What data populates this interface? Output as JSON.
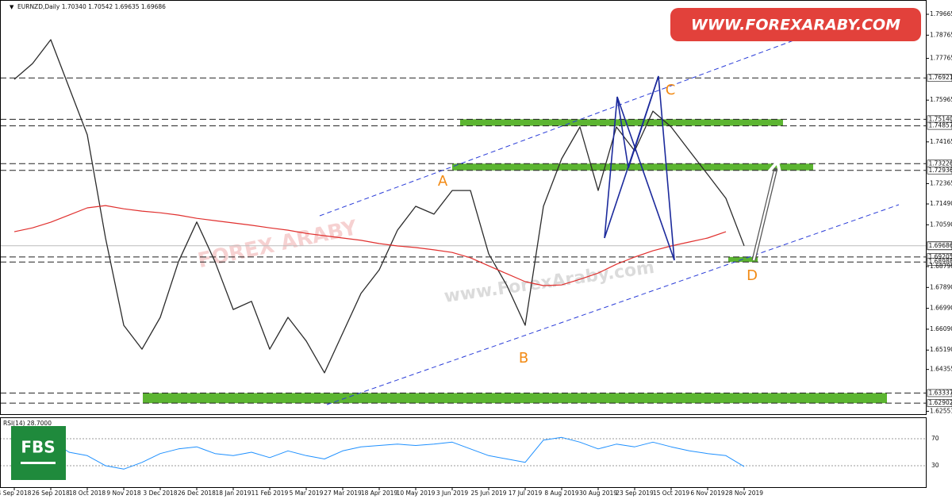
{
  "header": "EURNZD,Daily 1.70340 1.70542 1.69635 1.69686",
  "banner": "WWW.FOREXARABY.COM",
  "logo": "FBS",
  "watermarks": [
    "FOREX ARABY",
    "www.ForexAraby.com"
  ],
  "chart_data": [
    {
      "type": "line",
      "categories": [
        "4 Sep 2018",
        null,
        "26 Sep 2018",
        null,
        "18 Oct 2018",
        null,
        "9 Nov 2018",
        null,
        "3 Dec 2018",
        null,
        "26 Dec 2018",
        null,
        "18 Jan 2019",
        null,
        "11 Feb 2019",
        null,
        "5 Mar 2019",
        null,
        "27 Mar 2019",
        null,
        "18 Apr 2019",
        null,
        "10 May 2019",
        null,
        "3 Jun 2019",
        null,
        "25 Jun 2019",
        null,
        "17 Jul 2019",
        null,
        "8 Aug 2019",
        null,
        "30 Aug 2019",
        null,
        "23 Sep 2019",
        null,
        "15 Oct 2019",
        null,
        "6 Nov 2019",
        null,
        "28 Nov 2019"
      ],
      "series": [
        {
          "color": "#2b2b2b",
          "values": [
            1.7686,
            1.7754,
            1.7857,
            1.7652,
            1.7447,
            1.7002,
            1.6626,
            1.6523,
            1.666,
            1.69,
            1.7071,
            1.69,
            1.6694,
            1.6729,
            1.6523,
            1.666,
            1.6558,
            1.6421,
            1.6592,
            1.6763,
            1.6865,
            1.7036,
            1.7139,
            1.7105,
            1.7207,
            1.7207,
            1.6934,
            1.6797,
            1.6626,
            1.7139,
            1.7344,
            1.7481,
            1.7207,
            1.7481,
            1.7378,
            1.7549,
            1.7481,
            1.7378,
            1.7276,
            1.7173,
            1.69686
          ]
        },
        {
          "color": "#e0302e",
          "values": [
            1.7029,
            1.7046,
            1.707,
            1.7101,
            1.7132,
            1.7142,
            1.7128,
            1.7118,
            1.7111,
            1.7101,
            1.7087,
            1.7077,
            1.7067,
            1.7057,
            1.7046,
            1.7036,
            1.7022,
            1.7012,
            1.7002,
            1.6992,
            1.6978,
            1.6968,
            1.6961,
            1.6951,
            1.694,
            1.6917,
            1.6882,
            1.6848,
            1.6814,
            1.6797,
            1.68,
            1.6824,
            1.6851,
            1.6889,
            1.692,
            1.6947,
            1.6968,
            1.6985,
            1.7002,
            1.7029,
            null
          ]
        }
      ],
      "ylim": [
        1.62223,
        1.80281
      ],
      "yticks": [
        1.79665,
        1.78765,
        1.77765,
        1.75965,
        1.74165,
        1.72365,
        {
          "value": 1.7149,
          "label": "1.71490"
        },
        {
          "value": 1.7059,
          "label": "1.70590"
        },
        {
          "value": 1.6879,
          "label": "1.68790"
        },
        {
          "value": 1.6789,
          "label": "1.67890"
        },
        {
          "value": 1.6699,
          "label": "1.66990"
        },
        {
          "value": 1.6609,
          "label": "1.66090"
        },
        {
          "value": 1.6519,
          "label": "1.65190"
        },
        1.64355,
        1.62551
      ],
      "levels": [
        1.76921,
        {
          "value": 1.7514,
          "label": "1.75140"
        },
        1.74857,
        1.73226,
        1.72936,
        1.69205,
        1.68988,
        1.63337,
        1.62902
      ],
      "zones": [
        {
          "low": 1.74857,
          "high": 1.7514,
          "color": "#5cb531"
        },
        {
          "low": 1.72936,
          "high": 1.73226,
          "color": "#5cb531"
        },
        {
          "low": 1.62902,
          "high": 1.63337,
          "color": "#5cb531"
        },
        {
          "low": 1.68988,
          "high": 1.69205,
          "color": "#5cb531"
        }
      ],
      "current_price": 1.69686,
      "pattern_labels": [
        "A",
        "B",
        "C",
        "D"
      ]
    },
    {
      "type": "line",
      "title": "RSI(14) 28.7000",
      "series": [
        {
          "color": "#1e90ff",
          "values": [
            60,
            65,
            68,
            50,
            45,
            30,
            25,
            35,
            48,
            55,
            58,
            48,
            45,
            50,
            42,
            52,
            45,
            40,
            52,
            58,
            60,
            62,
            60,
            62,
            65,
            55,
            45,
            40,
            35,
            68,
            72,
            65,
            55,
            62,
            58,
            65,
            58,
            52,
            48,
            45,
            28.7
          ]
        }
      ],
      "ylim": [
        0,
        100
      ],
      "yticks": [
        30,
        70
      ]
    }
  ]
}
